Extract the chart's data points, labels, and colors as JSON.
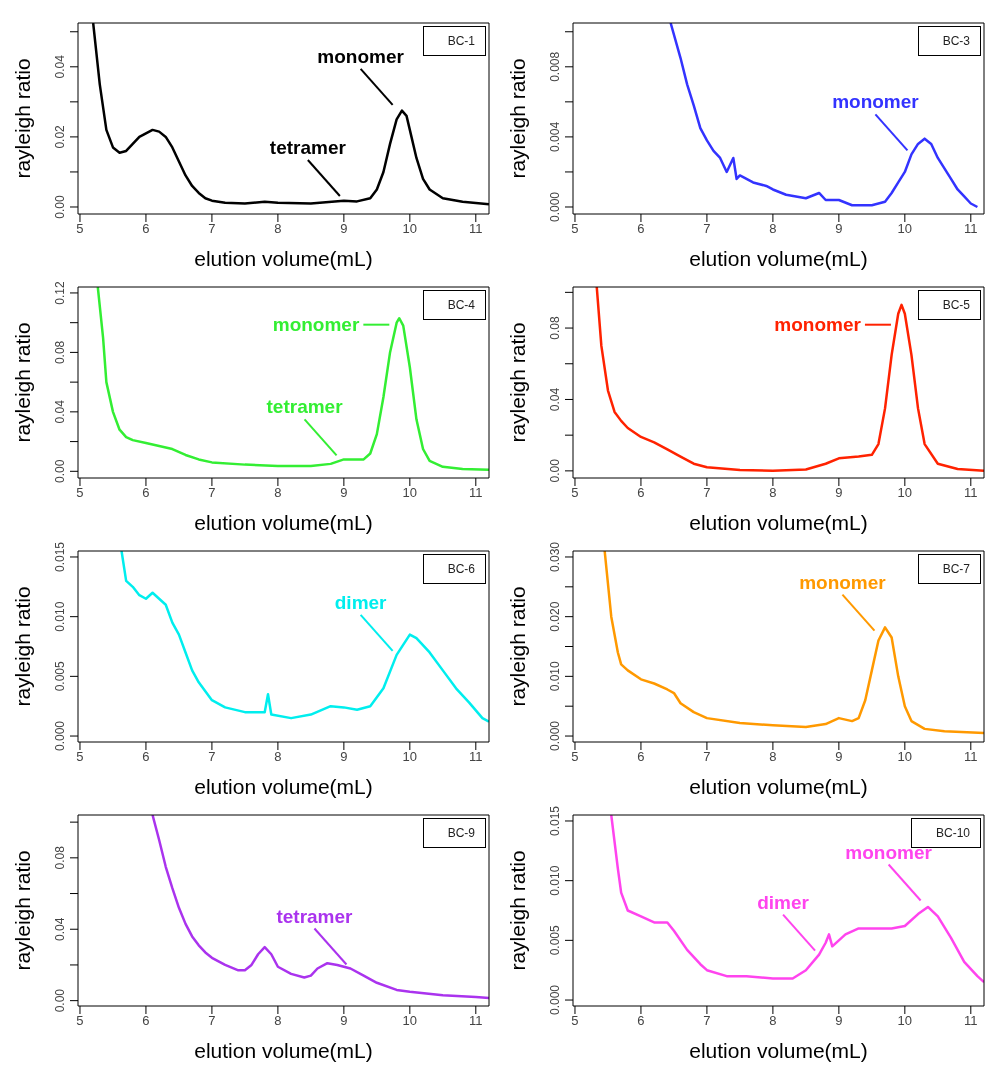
{
  "chart_data": [
    {
      "type": "line",
      "title": "BC-1",
      "xlabel": "elution volume(mL)",
      "ylabel": "rayleigh ratio",
      "color": "#000000",
      "xlim": [
        4.97,
        11.2
      ],
      "ylim": [
        -0.002,
        0.0525
      ],
      "xticks": [
        5,
        6,
        7,
        8,
        9,
        10,
        11
      ],
      "yticks": [
        {
          "value": 0,
          "label": "0.00"
        },
        {
          "value": 0.01,
          "label": null
        },
        {
          "value": 0.02,
          "label": "0.02"
        },
        {
          "value": 0.03,
          "label": null
        },
        {
          "value": 0.04,
          "label": "0.04"
        },
        {
          "value": 0.05,
          "label": null
        }
      ],
      "x": [
        5.2,
        5.3,
        5.4,
        5.5,
        5.6,
        5.7,
        5.8,
        5.9,
        6.0,
        6.1,
        6.2,
        6.3,
        6.4,
        6.5,
        6.6,
        6.7,
        6.8,
        6.9,
        7.0,
        7.2,
        7.5,
        7.8,
        8.0,
        8.5,
        9.0,
        9.2,
        9.4,
        9.5,
        9.6,
        9.7,
        9.8,
        9.88,
        9.95,
        10.0,
        10.1,
        10.2,
        10.3,
        10.5,
        10.8,
        11.2
      ],
      "values": [
        0.0525,
        0.035,
        0.022,
        0.017,
        0.0155,
        0.016,
        0.018,
        0.02,
        0.021,
        0.022,
        0.0215,
        0.02,
        0.017,
        0.013,
        0.009,
        0.006,
        0.004,
        0.0025,
        0.0018,
        0.0012,
        0.001,
        0.0015,
        0.0012,
        0.001,
        0.0018,
        0.0016,
        0.0025,
        0.005,
        0.01,
        0.018,
        0.025,
        0.0275,
        0.026,
        0.022,
        0.014,
        0.008,
        0.005,
        0.0025,
        0.0015,
        0.0008
      ],
      "annotations": [
        {
          "text": "monomer",
          "x": 9.8,
          "y": 0.028
        },
        {
          "text": "tetramer",
          "x": 9.0,
          "y": 0.002
        }
      ]
    },
    {
      "type": "line",
      "title": "BC-3",
      "xlabel": "elution volume(mL)",
      "ylabel": "rayleigh ratio",
      "color": "#3333ff",
      "xlim": [
        4.97,
        11.2
      ],
      "ylim": [
        -0.0004,
        0.0105
      ],
      "xticks": [
        5,
        6,
        7,
        8,
        9,
        10,
        11
      ],
      "yticks": [
        {
          "value": 0,
          "label": "0.000"
        },
        {
          "value": 0.002,
          "label": null
        },
        {
          "value": 0.004,
          "label": "0.004"
        },
        {
          "value": 0.006,
          "label": null
        },
        {
          "value": 0.008,
          "label": "0.008"
        },
        {
          "value": 0.01,
          "label": null
        }
      ],
      "x": [
        6.45,
        6.6,
        6.7,
        6.8,
        6.9,
        7.0,
        7.1,
        7.2,
        7.3,
        7.4,
        7.45,
        7.5,
        7.7,
        7.9,
        8.0,
        8.2,
        8.5,
        8.7,
        8.8,
        9.0,
        9.2,
        9.5,
        9.7,
        9.8,
        9.9,
        10.0,
        10.1,
        10.2,
        10.3,
        10.4,
        10.5,
        10.6,
        10.7,
        10.8,
        10.9,
        11.0,
        11.1
      ],
      "values": [
        0.0105,
        0.0085,
        0.007,
        0.0058,
        0.0045,
        0.0038,
        0.0032,
        0.0028,
        0.002,
        0.0028,
        0.0016,
        0.0018,
        0.0014,
        0.0012,
        0.001,
        0.0007,
        0.0005,
        0.0008,
        0.0004,
        0.0004,
        0.0001,
        0.0001,
        0.0003,
        0.0008,
        0.0014,
        0.002,
        0.003,
        0.0036,
        0.0039,
        0.0036,
        0.0028,
        0.0022,
        0.0016,
        0.001,
        0.0006,
        0.0002,
        0.0
      ],
      "annotations": [
        {
          "text": "monomer",
          "x": 10.1,
          "y": 0.003
        }
      ]
    },
    {
      "type": "line",
      "title": "BC-4",
      "xlabel": "elution volume(mL)",
      "ylabel": "rayleigh ratio",
      "color": "#33ee33",
      "xlim": [
        4.97,
        11.2
      ],
      "ylim": [
        -0.0045,
        0.124
      ],
      "xticks": [
        5,
        6,
        7,
        8,
        9,
        10,
        11
      ],
      "yticks": [
        {
          "value": 0,
          "label": "0.00"
        },
        {
          "value": 0.02,
          "label": null
        },
        {
          "value": 0.04,
          "label": "0.04"
        },
        {
          "value": 0.06,
          "label": null
        },
        {
          "value": 0.08,
          "label": "0.08"
        },
        {
          "value": 0.1,
          "label": null
        },
        {
          "value": 0.12,
          "label": "0.12"
        }
      ],
      "x": [
        5.27,
        5.35,
        5.4,
        5.5,
        5.6,
        5.7,
        5.8,
        6.0,
        6.2,
        6.4,
        6.6,
        6.8,
        7.0,
        7.5,
        8.0,
        8.5,
        8.8,
        9.0,
        9.1,
        9.3,
        9.4,
        9.5,
        9.6,
        9.7,
        9.8,
        9.84,
        9.9,
        10.0,
        10.1,
        10.2,
        10.3,
        10.5,
        10.8,
        11.2
      ],
      "values": [
        0.124,
        0.09,
        0.06,
        0.04,
        0.028,
        0.023,
        0.021,
        0.019,
        0.017,
        0.015,
        0.011,
        0.008,
        0.006,
        0.0045,
        0.0035,
        0.0035,
        0.005,
        0.008,
        0.008,
        0.008,
        0.012,
        0.025,
        0.05,
        0.08,
        0.1,
        0.103,
        0.098,
        0.07,
        0.035,
        0.015,
        0.007,
        0.003,
        0.0015,
        0.001
      ],
      "annotations": [
        {
          "text": "monomer",
          "x": 9.75,
          "y": 0.1
        },
        {
          "text": "tetramer",
          "x": 8.95,
          "y": 0.008
        }
      ]
    },
    {
      "type": "line",
      "title": "BC-5",
      "xlabel": "elution volume(mL)",
      "ylabel": "rayleigh ratio",
      "color": "#ff2200",
      "xlim": [
        4.97,
        11.2
      ],
      "ylim": [
        -0.004,
        0.103
      ],
      "xticks": [
        5,
        6,
        7,
        8,
        9,
        10,
        11
      ],
      "yticks": [
        {
          "value": 0,
          "label": "0.00"
        },
        {
          "value": 0.02,
          "label": null
        },
        {
          "value": 0.04,
          "label": "0.04"
        },
        {
          "value": 0.06,
          "label": null
        },
        {
          "value": 0.08,
          "label": "0.08"
        },
        {
          "value": 0.1,
          "label": null
        }
      ],
      "x": [
        5.33,
        5.4,
        5.5,
        5.6,
        5.7,
        5.8,
        6.0,
        6.2,
        6.4,
        6.6,
        6.8,
        7.0,
        7.5,
        8.0,
        8.5,
        8.8,
        9.0,
        9.3,
        9.5,
        9.6,
        9.7,
        9.8,
        9.9,
        9.95,
        10.0,
        10.1,
        10.2,
        10.3,
        10.5,
        10.8,
        11.2
      ],
      "values": [
        0.103,
        0.07,
        0.045,
        0.033,
        0.028,
        0.024,
        0.019,
        0.016,
        0.012,
        0.008,
        0.004,
        0.002,
        0.0005,
        0.0,
        0.0008,
        0.004,
        0.007,
        0.008,
        0.009,
        0.015,
        0.035,
        0.065,
        0.088,
        0.093,
        0.088,
        0.065,
        0.035,
        0.015,
        0.004,
        0.001,
        0.0
      ],
      "annotations": [
        {
          "text": "monomer",
          "x": 9.85,
          "y": 0.083
        }
      ]
    },
    {
      "type": "line",
      "title": "BC-6",
      "xlabel": "elution volume(mL)",
      "ylabel": "rayleigh ratio",
      "color": "#00eeee",
      "xlim": [
        4.97,
        11.2
      ],
      "ylim": [
        -0.0005,
        0.0155
      ],
      "xticks": [
        5,
        6,
        7,
        8,
        9,
        10,
        11
      ],
      "yticks": [
        {
          "value": 0,
          "label": "0.000"
        },
        {
          "value": 0.005,
          "label": "0.005"
        },
        {
          "value": 0.01,
          "label": "0.010"
        },
        {
          "value": 0.015,
          "label": "0.015"
        }
      ],
      "x": [
        5.63,
        5.7,
        5.8,
        5.9,
        6.0,
        6.1,
        6.2,
        6.3,
        6.4,
        6.5,
        6.6,
        6.7,
        6.8,
        7.0,
        7.2,
        7.5,
        7.8,
        7.85,
        7.9,
        8.2,
        8.5,
        8.8,
        9.0,
        9.2,
        9.4,
        9.6,
        9.8,
        10.0,
        10.1,
        10.3,
        10.5,
        10.7,
        10.9,
        11.1,
        11.2
      ],
      "values": [
        0.0155,
        0.013,
        0.0125,
        0.0118,
        0.0115,
        0.012,
        0.0115,
        0.011,
        0.0095,
        0.0085,
        0.007,
        0.0055,
        0.0045,
        0.003,
        0.0024,
        0.002,
        0.002,
        0.0035,
        0.0018,
        0.0015,
        0.0018,
        0.0025,
        0.0024,
        0.0022,
        0.0025,
        0.004,
        0.0068,
        0.0085,
        0.0082,
        0.007,
        0.0055,
        0.004,
        0.0028,
        0.0015,
        0.0012
      ],
      "annotations": [
        {
          "text": "dimer",
          "x": 9.8,
          "y": 0.0068
        }
      ]
    },
    {
      "type": "line",
      "title": "BC-7",
      "xlabel": "elution volume(mL)",
      "ylabel": "rayleigh ratio",
      "color": "#ff9900",
      "xlim": [
        4.97,
        11.2
      ],
      "ylim": [
        -0.001,
        0.031
      ],
      "xticks": [
        5,
        6,
        7,
        8,
        9,
        10,
        11
      ],
      "yticks": [
        {
          "value": 0,
          "label": "0.000"
        },
        {
          "value": 0.005,
          "label": null
        },
        {
          "value": 0.01,
          "label": "0.010"
        },
        {
          "value": 0.015,
          "label": null
        },
        {
          "value": 0.02,
          "label": "0.020"
        },
        {
          "value": 0.025,
          "label": null
        },
        {
          "value": 0.03,
          "label": "0.030"
        }
      ],
      "x": [
        5.45,
        5.55,
        5.65,
        5.7,
        5.8,
        6.0,
        6.2,
        6.4,
        6.5,
        6.6,
        6.8,
        7.0,
        7.5,
        8.0,
        8.5,
        8.8,
        9.0,
        9.2,
        9.3,
        9.4,
        9.5,
        9.6,
        9.7,
        9.8,
        9.9,
        10.0,
        10.1,
        10.3,
        10.6,
        11.2
      ],
      "values": [
        0.031,
        0.02,
        0.014,
        0.012,
        0.011,
        0.0095,
        0.0088,
        0.0078,
        0.0072,
        0.0055,
        0.004,
        0.003,
        0.0022,
        0.0018,
        0.0015,
        0.002,
        0.003,
        0.0025,
        0.003,
        0.006,
        0.011,
        0.016,
        0.0182,
        0.0165,
        0.01,
        0.005,
        0.0025,
        0.0012,
        0.0008,
        0.0005
      ],
      "annotations": [
        {
          "text": "monomer",
          "x": 9.6,
          "y": 0.017
        }
      ]
    },
    {
      "type": "line",
      "title": "BC-9",
      "xlabel": "elution volume(mL)",
      "ylabel": "rayleigh ratio",
      "color": "#aa33ee",
      "xlim": [
        4.97,
        11.2
      ],
      "ylim": [
        -0.003,
        0.104
      ],
      "xticks": [
        5,
        6,
        7,
        8,
        9,
        10,
        11
      ],
      "yticks": [
        {
          "value": 0,
          "label": "0.00"
        },
        {
          "value": 0.02,
          "label": null
        },
        {
          "value": 0.04,
          "label": "0.04"
        },
        {
          "value": 0.06,
          "label": null
        },
        {
          "value": 0.08,
          "label": "0.08"
        },
        {
          "value": 0.1,
          "label": null
        }
      ],
      "x": [
        6.1,
        6.2,
        6.3,
        6.4,
        6.5,
        6.6,
        6.7,
        6.8,
        6.9,
        7.0,
        7.2,
        7.4,
        7.5,
        7.6,
        7.7,
        7.8,
        7.9,
        8.0,
        8.2,
        8.4,
        8.5,
        8.6,
        8.75,
        8.9,
        9.1,
        9.3,
        9.5,
        9.8,
        10.0,
        10.5,
        11.0,
        11.2
      ],
      "values": [
        0.104,
        0.09,
        0.075,
        0.063,
        0.052,
        0.043,
        0.036,
        0.031,
        0.027,
        0.024,
        0.02,
        0.017,
        0.017,
        0.02,
        0.026,
        0.03,
        0.026,
        0.019,
        0.015,
        0.013,
        0.014,
        0.018,
        0.021,
        0.02,
        0.018,
        0.014,
        0.01,
        0.006,
        0.005,
        0.003,
        0.002,
        0.0015
      ],
      "annotations": [
        {
          "text": "tetramer",
          "x": 9.1,
          "y": 0.018
        }
      ]
    },
    {
      "type": "line",
      "title": "BC-10",
      "xlabel": "elution volume(mL)",
      "ylabel": "rayleigh ratio",
      "color": "#ff44ee",
      "xlim": [
        4.97,
        11.2
      ],
      "ylim": [
        -0.0005,
        0.0155
      ],
      "xticks": [
        5,
        6,
        7,
        8,
        9,
        10,
        11
      ],
      "yticks": [
        {
          "value": 0,
          "label": "0.000"
        },
        {
          "value": 0.005,
          "label": "0.005"
        },
        {
          "value": 0.01,
          "label": "0.010"
        },
        {
          "value": 0.015,
          "label": "0.015"
        }
      ],
      "x": [
        5.55,
        5.65,
        5.7,
        5.8,
        6.0,
        6.2,
        6.4,
        6.5,
        6.7,
        6.9,
        7.0,
        7.3,
        7.6,
        8.0,
        8.3,
        8.5,
        8.7,
        8.8,
        8.85,
        8.9,
        9.1,
        9.3,
        9.5,
        9.8,
        10.0,
        10.2,
        10.35,
        10.5,
        10.7,
        10.9,
        11.1,
        11.2
      ],
      "values": [
        0.0155,
        0.011,
        0.009,
        0.0075,
        0.007,
        0.0065,
        0.0065,
        0.0058,
        0.0042,
        0.003,
        0.0025,
        0.002,
        0.002,
        0.0018,
        0.0018,
        0.0025,
        0.0038,
        0.0048,
        0.0055,
        0.0045,
        0.0055,
        0.006,
        0.006,
        0.006,
        0.0062,
        0.0072,
        0.0078,
        0.007,
        0.0052,
        0.0032,
        0.002,
        0.0015
      ],
      "annotations": [
        {
          "text": "monomer",
          "x": 10.3,
          "y": 0.008
        },
        {
          "text": "dimer",
          "x": 8.7,
          "y": 0.0038
        }
      ]
    }
  ]
}
